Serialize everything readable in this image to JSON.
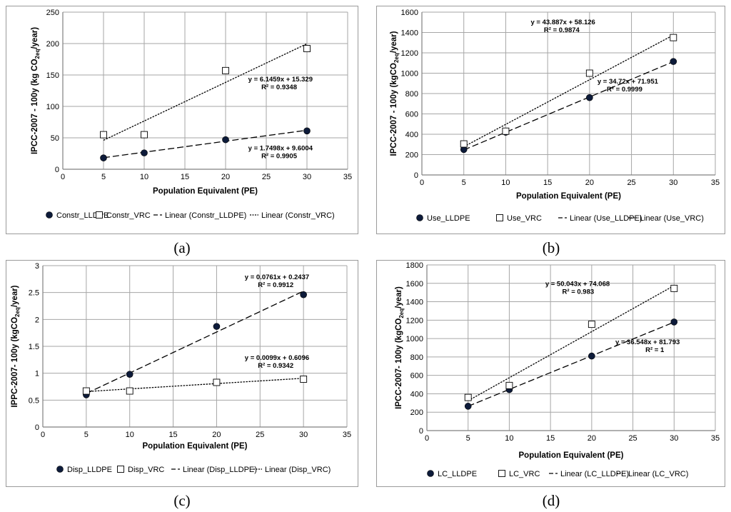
{
  "colors": {
    "grid": "#a6a6a6",
    "axis": "#808080",
    "marker_fill": "#0d1b3a",
    "line": "#000000"
  },
  "chart_data": [
    {
      "type": "scatter",
      "caption": "(a)",
      "xlabel": "Population Equivalent (PE)",
      "ylabel": "IPCC-2007 - 100y (kg CO",
      "ylabel_sub": "2eq",
      "ylabel_tail": "/year)",
      "xlim": [
        0,
        35
      ],
      "ylim": [
        0,
        250
      ],
      "xticks": [
        "0",
        "5",
        "10",
        "15",
        "20",
        "25",
        "30",
        "35"
      ],
      "yticks": [
        "0",
        "50",
        "100",
        "150",
        "200",
        "250"
      ],
      "series": [
        {
          "name": "Constr_LLDPE",
          "marker": "filled-circle",
          "x": [
            5,
            10,
            20,
            30
          ],
          "y": [
            18,
            26,
            47,
            61
          ]
        },
        {
          "name": "Constr_VRC",
          "marker": "open-square",
          "x": [
            5,
            10,
            20,
            30
          ],
          "y": [
            55,
            55,
            157,
            192
          ]
        }
      ],
      "trendlines": [
        {
          "name": "Linear (Constr_LLDPE)",
          "style": "long-dash",
          "slope": 1.7498,
          "intercept": 9.6004,
          "x_range": [
            5,
            30
          ],
          "equation": "y = 1.7498x + 9.6004",
          "r2": "R² = 0.9905",
          "label_at": [
            30,
            30
          ]
        },
        {
          "name": "Linear (Constr_VRC)",
          "style": "dotted",
          "slope": 6.1459,
          "intercept": 15.329,
          "x_range": [
            5,
            30
          ],
          "equation": "y = 6.1459x + 15.329",
          "r2": "R² = 0.9348",
          "label_at": [
            30,
            140
          ]
        }
      ]
    },
    {
      "type": "scatter",
      "caption": "(b)",
      "xlabel": "Population Equivalent (PE)",
      "ylabel": "IPCC-2007 - 100y (kgCO",
      "ylabel_sub": "2eq",
      "ylabel_tail": "/year)",
      "xlim": [
        0,
        35
      ],
      "ylim": [
        0,
        1600
      ],
      "xticks": [
        "0",
        "5",
        "10",
        "15",
        "20",
        "25",
        "30",
        "35"
      ],
      "yticks": [
        "0",
        "200",
        "400",
        "600",
        "800",
        "1000",
        "1200",
        "1400",
        "1600"
      ],
      "series": [
        {
          "name": "Use_LLDPE",
          "marker": "filled-circle",
          "x": [
            5,
            10,
            20,
            30
          ],
          "y": [
            250,
            420,
            760,
            1115
          ]
        },
        {
          "name": "Use_VRC",
          "marker": "open-square",
          "x": [
            5,
            10,
            20,
            30
          ],
          "y": [
            305,
            430,
            1000,
            1350
          ]
        }
      ],
      "trendlines": [
        {
          "name": "Linear (Use_LLDPE)",
          "style": "long-dash",
          "slope": 34.72,
          "intercept": 71.951,
          "x_range": [
            5,
            30
          ],
          "equation": "y = 34.72x + 71.951",
          "r2": "R² = 0.9999",
          "label_at": [
            27.5,
            900
          ]
        },
        {
          "name": "Linear (Use_VRC)",
          "style": "dotted",
          "slope": 43.887,
          "intercept": 58.126,
          "x_range": [
            5,
            30
          ],
          "equation": "y = 43.887x + 58.126",
          "r2": "R² = 0.9874",
          "label_at": [
            20,
            1480
          ]
        }
      ]
    },
    {
      "type": "scatter",
      "caption": "(c)",
      "xlabel": "Population Equivalent (PE)",
      "ylabel": "IPPC-2007- 100y (kgCO",
      "ylabel_sub": "2eq",
      "ylabel_tail": "/year)",
      "xlim": [
        0,
        35
      ],
      "ylim": [
        0,
        3
      ],
      "xticks": [
        "0",
        "5",
        "10",
        "15",
        "20",
        "25",
        "30",
        "35"
      ],
      "yticks": [
        "0",
        "0.5",
        "1",
        "1.5",
        "2",
        "2.5",
        "3"
      ],
      "series": [
        {
          "name": "Disp_LLDPE",
          "marker": "filled-circle",
          "x": [
            5,
            10,
            20,
            30
          ],
          "y": [
            0.6,
            0.98,
            1.87,
            2.46
          ]
        },
        {
          "name": "Disp_VRC",
          "marker": "open-square",
          "x": [
            5,
            10,
            20,
            30
          ],
          "y": [
            0.67,
            0.67,
            0.83,
            0.89
          ]
        }
      ],
      "trendlines": [
        {
          "name": "Linear (Disp_LLDPE)",
          "style": "long-dash",
          "slope": 0.0761,
          "intercept": 0.2437,
          "x_range": [
            5,
            30
          ],
          "equation": "y = 0.0761x + 0.2437",
          "r2": "R² = 0.9912",
          "label_at": [
            30,
            2.75
          ]
        },
        {
          "name": "Linear (Disp_VRC)",
          "style": "dotted",
          "slope": 0.0099,
          "intercept": 0.6096,
          "x_range": [
            5,
            30
          ],
          "equation": "y = 0.0099x + 0.6096",
          "r2": "R² = 0.9342",
          "label_at": [
            30,
            1.25
          ]
        }
      ]
    },
    {
      "type": "scatter",
      "caption": "(d)",
      "xlabel": "Population Equivalent (PE)",
      "ylabel": "IPCC-2007- 100y (kgCO",
      "ylabel_sub": "2eq",
      "ylabel_tail": "/year)",
      "xlim": [
        0,
        35
      ],
      "ylim": [
        0,
        1800
      ],
      "xticks": [
        "0",
        "5",
        "10",
        "15",
        "20",
        "25",
        "30",
        "35"
      ],
      "yticks": [
        "0",
        "200",
        "400",
        "600",
        "800",
        "1000",
        "1200",
        "1400",
        "1600",
        "1800"
      ],
      "series": [
        {
          "name": "LC_LLDPE",
          "marker": "filled-circle",
          "x": [
            5,
            10,
            20,
            30
          ],
          "y": [
            265,
            445,
            810,
            1180
          ]
        },
        {
          "name": "LC_VRC",
          "marker": "open-square",
          "x": [
            5,
            10,
            20,
            30
          ],
          "y": [
            360,
            490,
            1155,
            1545
          ]
        }
      ],
      "trendlines": [
        {
          "name": "Linear (LC_LLDPE)",
          "style": "long-dash",
          "slope": 36.548,
          "intercept": 81.793,
          "x_range": [
            5,
            30
          ],
          "equation": "y = 36.548x + 81.793",
          "r2": "R² = 1",
          "label_at": [
            30,
            940
          ]
        },
        {
          "name": "Linear (LC_VRC)",
          "style": "dotted",
          "slope": 50.043,
          "intercept": 74.068,
          "x_range": [
            5,
            30
          ],
          "equation": "y = 50.043x + 74.068",
          "r2": "R² = 0.983",
          "label_at": [
            21.5,
            1570
          ]
        }
      ]
    }
  ]
}
